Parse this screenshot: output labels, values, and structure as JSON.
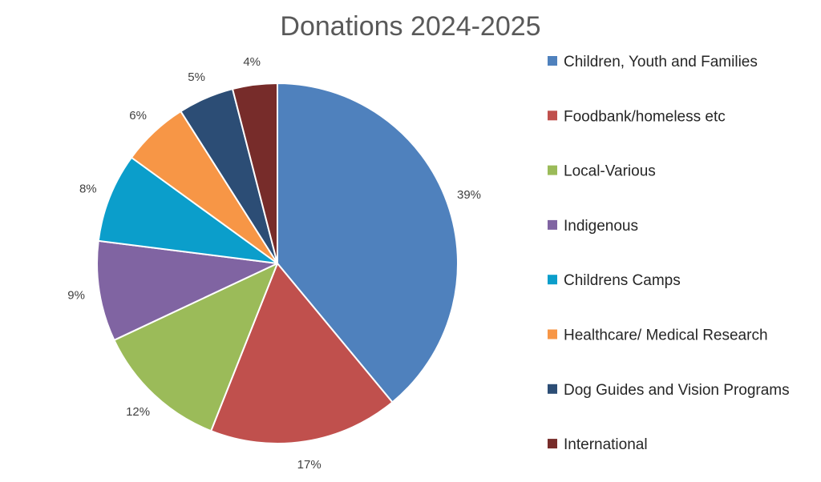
{
  "chart_data": {
    "type": "pie",
    "title": "Donations 2024-2025",
    "categories": [
      "Children, Youth and Families",
      "Foodbank/homeless etc",
      "Local-Various",
      "Indigenous",
      "Childrens Camps",
      "Healthcare/ Medical Research",
      "Dog Guides and Vision Programs",
      "International"
    ],
    "values": [
      39,
      17,
      12,
      9,
      8,
      6,
      5,
      4
    ],
    "value_labels": [
      "39%",
      "17%",
      "12%",
      "9%",
      "8%",
      "6%",
      "5%",
      "4%"
    ],
    "colors": [
      "#4f81bd",
      "#c0504d",
      "#9bbb59",
      "#8064a2",
      "#0b9ecb",
      "#f79646",
      "#2c4d75",
      "#772c2a"
    ],
    "legend_position": "right",
    "start_angle": "12 o'clock",
    "direction": "clockwise"
  }
}
